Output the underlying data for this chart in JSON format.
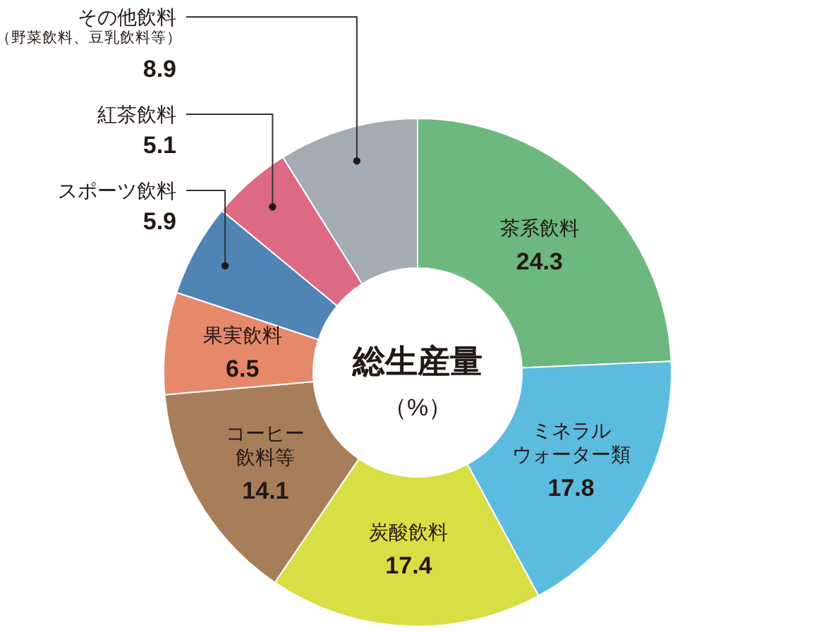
{
  "chart_data": {
    "type": "donut",
    "title": "総生産量",
    "subtitle": "（%）",
    "categories": [
      "茶系飲料",
      "ミネラルウォーター類",
      "炭酸飲料",
      "コーヒー飲料等",
      "果実飲料",
      "スポーツ飲料",
      "紅茶飲料",
      "その他飲料（野菜飲料、豆乳飲料等）"
    ],
    "values": [
      24.3,
      17.8,
      17.4,
      14.1,
      6.5,
      5.9,
      5.1,
      8.9
    ],
    "colors": [
      "#6cb87f",
      "#5cbcdf",
      "#d7df45",
      "#a87e5a",
      "#e5896a",
      "#4f84b4",
      "#dc6a83",
      "#a3abb3"
    ],
    "data_labels": true
  }
}
